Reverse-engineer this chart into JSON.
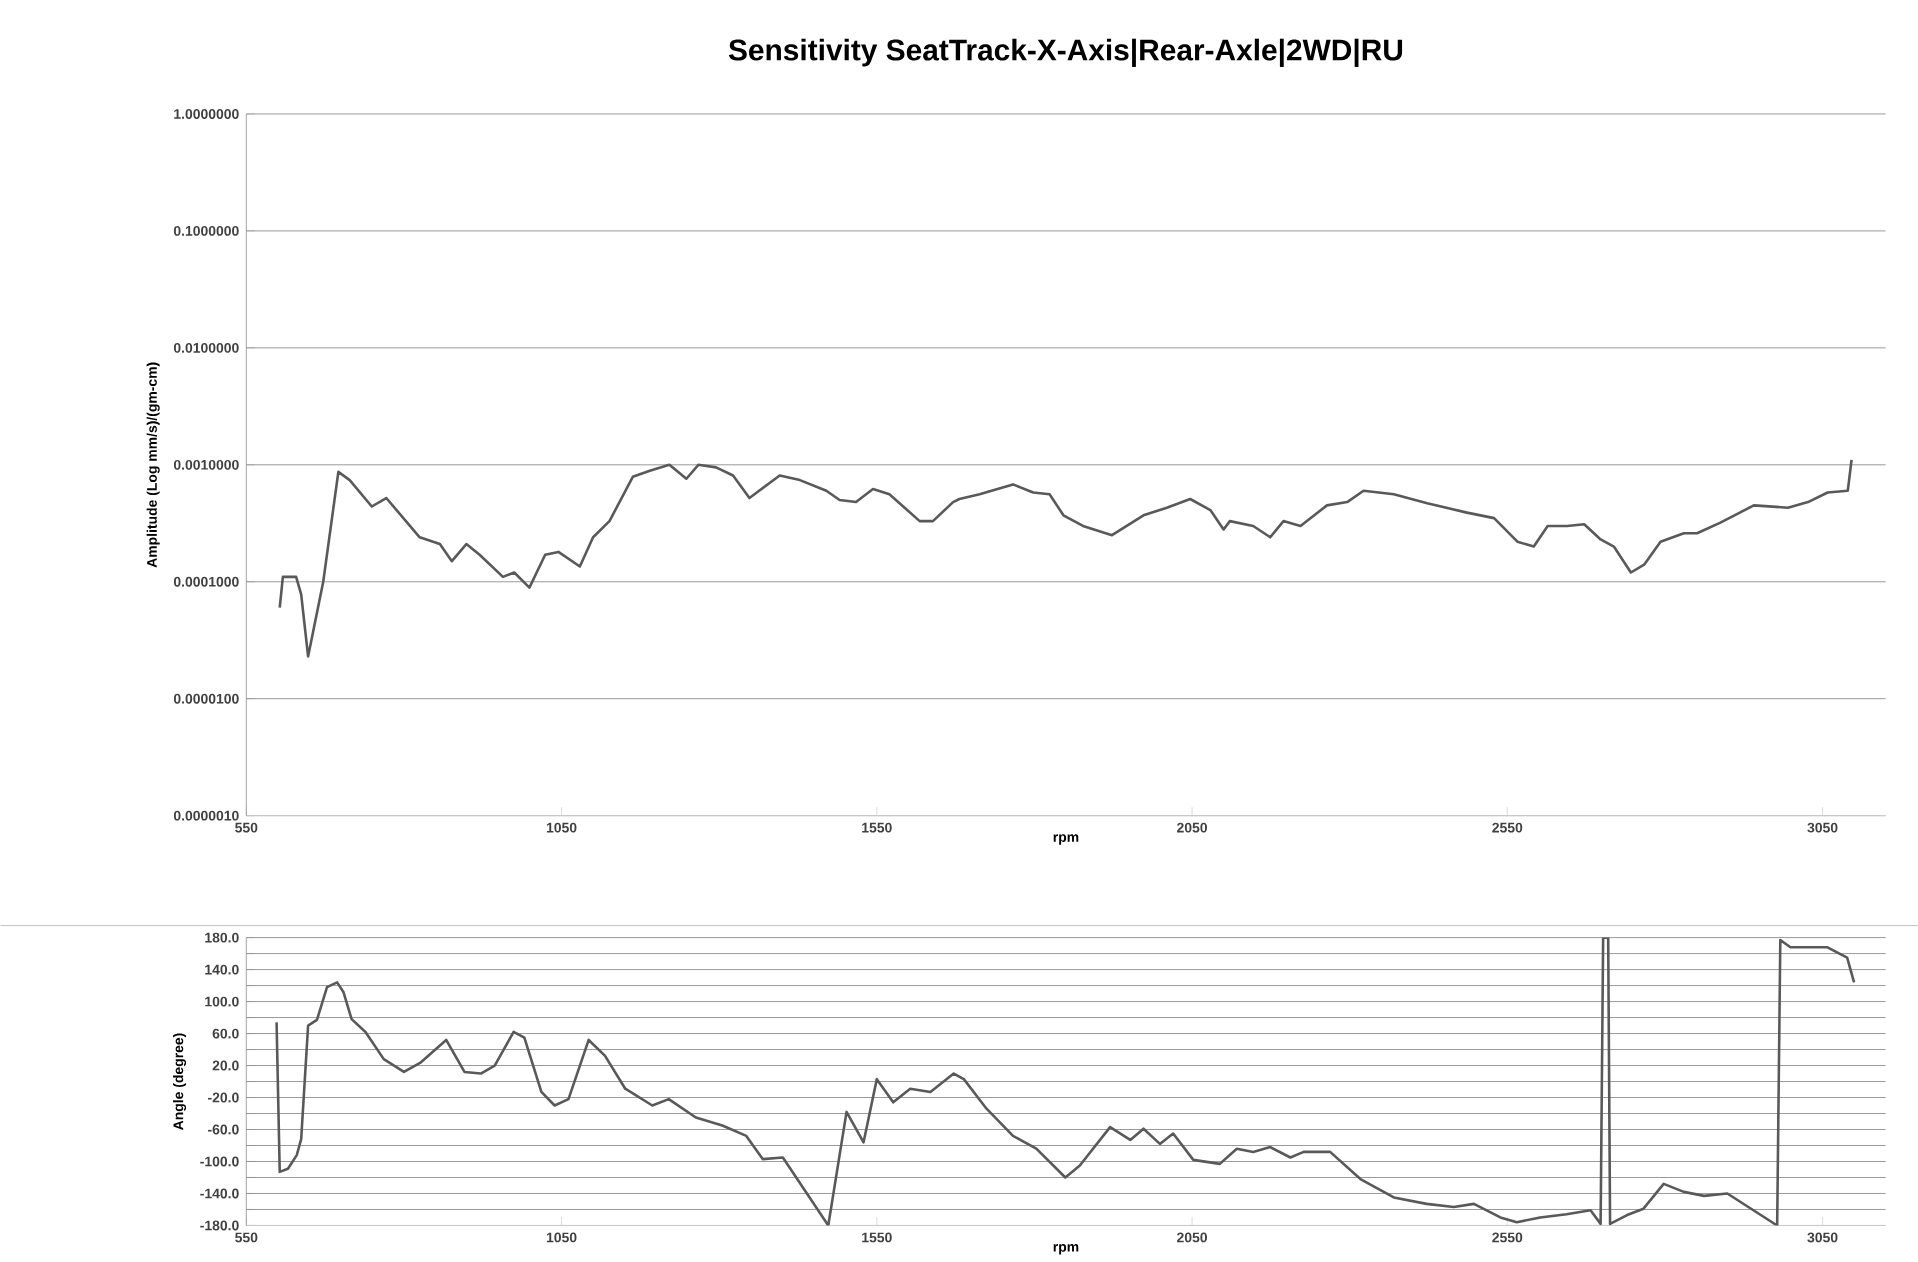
{
  "chart_data": [
    {
      "type": "line",
      "title": "Sensitivity SeatTrack-X-Axis|Rear-Axle|2WD|RU",
      "xlabel": "rpm",
      "ylabel": "Amplitude (Log mm/s)/(gm-cm)",
      "log": "y",
      "grid": "y",
      "color": "#595959",
      "xlim": [
        550,
        3150
      ],
      "xticks": [
        550,
        1050,
        1550,
        2050,
        2550,
        3050
      ],
      "ylim": [
        1e-06,
        1
      ],
      "yticks": [
        {
          "value": 1e-06,
          "label": "0.0000010"
        },
        {
          "value": 1e-05,
          "label": "0.0000100"
        },
        {
          "value": 0.0001,
          "label": "0.0001000"
        },
        {
          "value": 0.001,
          "label": "0.0010000"
        },
        {
          "value": 0.01,
          "label": "0.0100000"
        },
        {
          "value": 0.1,
          "label": "0.1000000"
        },
        {
          "value": 1,
          "label": "1.0000000"
        }
      ],
      "x": [
        603,
        608,
        629,
        637,
        648,
        672,
        696,
        714,
        749,
        772,
        825,
        857,
        876,
        899,
        920,
        957,
        975,
        999,
        1024,
        1045,
        1079,
        1100,
        1126,
        1163,
        1190,
        1221,
        1248,
        1267,
        1295,
        1322,
        1348,
        1396,
        1428,
        1470,
        1491,
        1517,
        1544,
        1570,
        1618,
        1639,
        1671,
        1681,
        1713,
        1766,
        1798,
        1824,
        1846,
        1877,
        1923,
        1973,
        2010,
        2047,
        2079,
        2100,
        2110,
        2147,
        2174,
        2195,
        2222,
        2264,
        2296,
        2322,
        2370,
        2423,
        2486,
        2529,
        2566,
        2592,
        2614,
        2645,
        2672,
        2698,
        2719,
        2746,
        2767,
        2793,
        2830,
        2851,
        2888,
        2941,
        2995,
        3027,
        3058,
        3090,
        3096
      ],
      "values": [
        6e-05,
        0.00011,
        0.00011,
        7.8e-05,
        2.3e-05,
        0.0001,
        0.00087,
        0.00074,
        0.00044,
        0.00052,
        0.00024,
        0.00021,
        0.00015,
        0.00021,
        0.00017,
        0.00011,
        0.00012,
        8.9e-05,
        0.00017,
        0.00018,
        0.000135,
        0.00024,
        0.00033,
        0.00079,
        0.00089,
        0.001,
        0.00076,
        0.001,
        0.00095,
        0.00081,
        0.00052,
        0.00081,
        0.00074,
        0.0006,
        0.0005,
        0.00048,
        0.00062,
        0.00056,
        0.00033,
        0.00033,
        0.00048,
        0.00051,
        0.00056,
        0.00068,
        0.00058,
        0.00056,
        0.00037,
        0.0003,
        0.00025,
        0.00037,
        0.00043,
        0.00051,
        0.00041,
        0.00028,
        0.00033,
        0.0003,
        0.00024,
        0.00033,
        0.0003,
        0.00045,
        0.00048,
        0.0006,
        0.00056,
        0.00047,
        0.00039,
        0.00035,
        0.00022,
        0.0002,
        0.0003,
        0.0003,
        0.00031,
        0.00023,
        0.0002,
        0.00012,
        0.00014,
        0.00022,
        0.00026,
        0.00026,
        0.00032,
        0.00045,
        0.00043,
        0.00048,
        0.00058,
        0.0006,
        0.0011
      ]
    },
    {
      "type": "line",
      "xlabel": "rpm",
      "ylabel": "Angle (degree)",
      "grid": "y",
      "color": "#595959",
      "xlim": [
        550,
        3150
      ],
      "xticks": [
        550,
        1050,
        1550,
        2050,
        2550,
        3050
      ],
      "ylim": [
        -180,
        180
      ],
      "yticks": [
        {
          "value": -180,
          "label": "-180.0"
        },
        {
          "value": -160,
          "label": null
        },
        {
          "value": -140,
          "label": "-140.0"
        },
        {
          "value": -120,
          "label": null
        },
        {
          "value": -100,
          "label": "-100.0"
        },
        {
          "value": -80,
          "label": null
        },
        {
          "value": -60,
          "label": "-60.0"
        },
        {
          "value": -40,
          "label": null
        },
        {
          "value": -20,
          "label": "-20.0"
        },
        {
          "value": 0,
          "label": null
        },
        {
          "value": 20,
          "label": "20.0"
        },
        {
          "value": 40,
          "label": null
        },
        {
          "value": 60,
          "label": "60.0"
        },
        {
          "value": 80,
          "label": null
        },
        {
          "value": 100,
          "label": "100.0"
        },
        {
          "value": 120,
          "label": null
        },
        {
          "value": 140,
          "label": "140.0"
        },
        {
          "value": 160,
          "label": null
        },
        {
          "value": 180,
          "label": "180.0"
        }
      ],
      "x": [
        598,
        603,
        616,
        630,
        637,
        648,
        662,
        678,
        694,
        704,
        717,
        739,
        768,
        800,
        827,
        867,
        896,
        922,
        944,
        974,
        991,
        1018,
        1039,
        1061,
        1093,
        1119,
        1151,
        1194,
        1220,
        1263,
        1305,
        1343,
        1369,
        1401,
        1473,
        1502,
        1529,
        1550,
        1576,
        1603,
        1635,
        1672,
        1688,
        1724,
        1766,
        1803,
        1849,
        1872,
        1920,
        1952,
        1973,
        1999,
        2020,
        2052,
        2094,
        2121,
        2147,
        2174,
        2206,
        2227,
        2269,
        2317,
        2370,
        2422,
        2465,
        2497,
        2539,
        2565,
        2602,
        2644,
        2682,
        2698,
        2702,
        2710,
        2713,
        2740,
        2766,
        2798,
        2830,
        2862,
        2899,
        2978,
        2983,
        2999,
        3057,
        3089,
        3100
      ],
      "values": [
        74,
        -113,
        -109,
        -92,
        -72,
        70,
        77,
        118,
        124,
        112,
        78,
        62,
        28,
        12,
        24,
        52,
        12,
        10,
        20,
        62,
        55,
        -13,
        -30,
        -22,
        52,
        32,
        -9,
        -30,
        -22,
        -45,
        -55,
        -68,
        -97,
        -95,
        -180,
        -38,
        -76,
        3,
        -26,
        -9,
        -13,
        10,
        3,
        -34,
        -68,
        -84,
        -120,
        -105,
        -57,
        -73,
        -59,
        -78,
        -65,
        -98,
        -103,
        -84,
        -88,
        -82,
        -95,
        -88,
        -88,
        -122,
        -145,
        -153,
        -157,
        -153,
        -170,
        -176,
        -170,
        -166,
        -161,
        -178,
        180,
        180,
        -178,
        -167,
        -159,
        -128,
        -138,
        -143,
        -140,
        -180,
        177,
        168,
        168,
        155,
        124
      ]
    }
  ]
}
